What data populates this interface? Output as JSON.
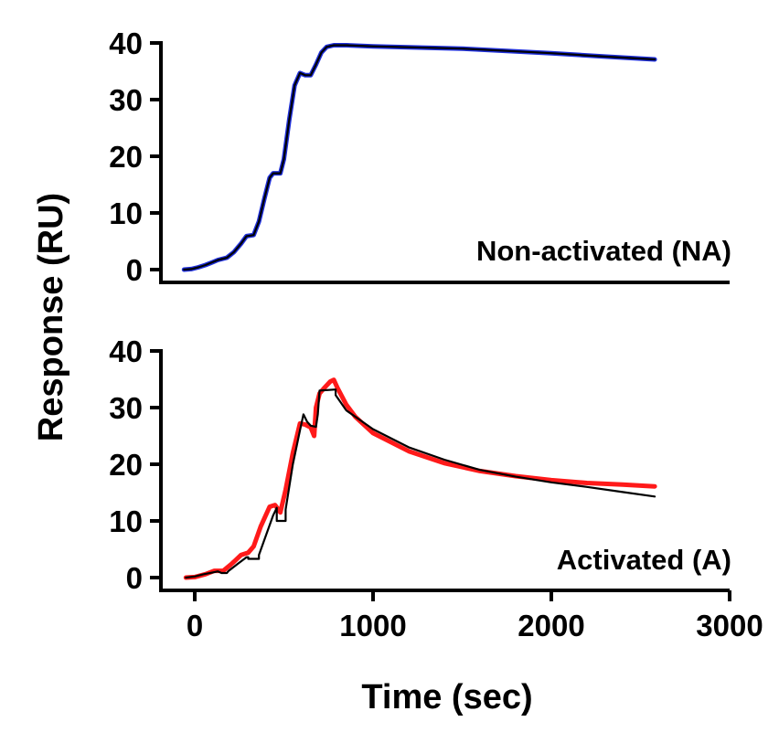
{
  "chart_data": {
    "type": "line",
    "ylabel": "Response (RU)",
    "xlabel": "Time (sec)",
    "xlim": [
      -150,
      3000
    ],
    "x_ticks": [
      "0",
      "1000",
      "2000",
      "3000"
    ],
    "shared_x_axis": true,
    "panels": [
      {
        "id": "top",
        "annotation": "Non-activated (NA)",
        "ylim": [
          -1.5,
          40
        ],
        "y_ticks": [
          "0",
          "10",
          "20",
          "30",
          "40"
        ],
        "series": [
          {
            "role": "data",
            "color": "#1f2fd9",
            "points": [
              [
                -60,
                0
              ],
              [
                -20,
                0.1
              ],
              [
                20,
                0.4
              ],
              [
                60,
                0.8
              ],
              [
                100,
                1.3
              ],
              [
                130,
                1.7
              ],
              [
                180,
                2.1
              ],
              [
                220,
                3.1
              ],
              [
                260,
                4.6
              ],
              [
                290,
                5.9
              ],
              [
                330,
                6.1
              ],
              [
                360,
                8.5
              ],
              [
                390,
                12.5
              ],
              [
                420,
                16.2
              ],
              [
                440,
                17.0
              ],
              [
                460,
                17.0
              ],
              [
                480,
                17.0
              ],
              [
                500,
                19.5
              ],
              [
                530,
                26.5
              ],
              [
                560,
                32.5
              ],
              [
                590,
                34.7
              ],
              [
                620,
                34.3
              ],
              [
                650,
                34.3
              ],
              [
                680,
                36.2
              ],
              [
                710,
                38.3
              ],
              [
                740,
                39.3
              ],
              [
                780,
                39.6
              ],
              [
                850,
                39.6
              ],
              [
                1000,
                39.4
              ],
              [
                1500,
                39.0
              ],
              [
                2000,
                38.2
              ],
              [
                2300,
                37.6
              ],
              [
                2580,
                37.1
              ]
            ]
          },
          {
            "role": "fit",
            "color": "#000000",
            "points": [
              [
                -60,
                0
              ],
              [
                -20,
                0.1
              ],
              [
                20,
                0.4
              ],
              [
                60,
                0.8
              ],
              [
                100,
                1.3
              ],
              [
                130,
                1.7
              ],
              [
                180,
                2.1
              ],
              [
                220,
                3.1
              ],
              [
                260,
                4.6
              ],
              [
                290,
                5.9
              ],
              [
                330,
                6.1
              ],
              [
                360,
                8.5
              ],
              [
                390,
                12.5
              ],
              [
                420,
                16.2
              ],
              [
                440,
                17.0
              ],
              [
                460,
                17.0
              ],
              [
                480,
                17.0
              ],
              [
                500,
                19.5
              ],
              [
                530,
                26.5
              ],
              [
                560,
                32.5
              ],
              [
                590,
                34.7
              ],
              [
                620,
                34.3
              ],
              [
                650,
                34.3
              ],
              [
                680,
                36.2
              ],
              [
                710,
                38.3
              ],
              [
                740,
                39.3
              ],
              [
                780,
                39.6
              ],
              [
                850,
                39.6
              ],
              [
                1000,
                39.4
              ],
              [
                1500,
                39.0
              ],
              [
                2000,
                38.2
              ],
              [
                2300,
                37.6
              ],
              [
                2580,
                37.1
              ]
            ]
          }
        ]
      },
      {
        "id": "bottom",
        "annotation": "Activated (A)",
        "ylim": [
          -1.5,
          40
        ],
        "y_ticks": [
          "0",
          "10",
          "20",
          "30",
          "40"
        ],
        "series": [
          {
            "role": "data",
            "color": "#ff1a1a",
            "points": [
              [
                -50,
                0
              ],
              [
                0,
                0.1
              ],
              [
                60,
                0.6
              ],
              [
                110,
                1.2
              ],
              [
                160,
                1.2
              ],
              [
                210,
                2.5
              ],
              [
                260,
                4.0
              ],
              [
                300,
                4.4
              ],
              [
                330,
                5.5
              ],
              [
                370,
                9.0
              ],
              [
                420,
                12.5
              ],
              [
                450,
                12.8
              ],
              [
                480,
                11.5
              ],
              [
                510,
                15.5
              ],
              [
                550,
                22.0
              ],
              [
                590,
                27.2
              ],
              [
                620,
                27.0
              ],
              [
                650,
                26.5
              ],
              [
                670,
                25.0
              ],
              [
                680,
                30.0
              ],
              [
                700,
                32.5
              ],
              [
                730,
                33.6
              ],
              [
                760,
                34.6
              ],
              [
                780,
                34.9
              ],
              [
                800,
                33.5
              ],
              [
                850,
                30.5
              ],
              [
                900,
                28.4
              ],
              [
                1000,
                25.5
              ],
              [
                1200,
                22.3
              ],
              [
                1400,
                20.2
              ],
              [
                1600,
                18.8
              ],
              [
                1800,
                17.9
              ],
              [
                2000,
                17.2
              ],
              [
                2200,
                16.7
              ],
              [
                2400,
                16.4
              ],
              [
                2580,
                16.1
              ]
            ]
          },
          {
            "role": "fit",
            "color": "#000000",
            "points": [
              [
                -50,
                0
              ],
              [
                0,
                0.2
              ],
              [
                50,
                0.6
              ],
              [
                100,
                0.9
              ],
              [
                130,
                1.1
              ],
              [
                150,
                0.8
              ],
              [
                180,
                0.8
              ],
              [
                190,
                1.2
              ],
              [
                240,
                2.4
              ],
              [
                290,
                3.6
              ],
              [
                300,
                3.6
              ],
              [
                300,
                3.3
              ],
              [
                360,
                3.3
              ],
              [
                360,
                4.0
              ],
              [
                400,
                7.5
              ],
              [
                440,
                11.0
              ],
              [
                460,
                12.3
              ],
              [
                460,
                10.0
              ],
              [
                510,
                10.0
              ],
              [
                510,
                12.0
              ],
              [
                550,
                20.0
              ],
              [
                590,
                26.0
              ],
              [
                610,
                28.8
              ],
              [
                630,
                27.5
              ],
              [
                650,
                26.8
              ],
              [
                680,
                26.6
              ],
              [
                690,
                28.8
              ],
              [
                700,
                33.0
              ],
              [
                790,
                33.2
              ],
              [
                790,
                32.2
              ],
              [
                850,
                29.5
              ],
              [
                1000,
                26.2
              ],
              [
                1200,
                23.0
              ],
              [
                1400,
                20.8
              ],
              [
                1600,
                19.0
              ],
              [
                1800,
                17.8
              ],
              [
                2000,
                16.8
              ],
              [
                2200,
                16.0
              ],
              [
                2400,
                15.1
              ],
              [
                2580,
                14.3
              ]
            ]
          }
        ]
      }
    ]
  }
}
